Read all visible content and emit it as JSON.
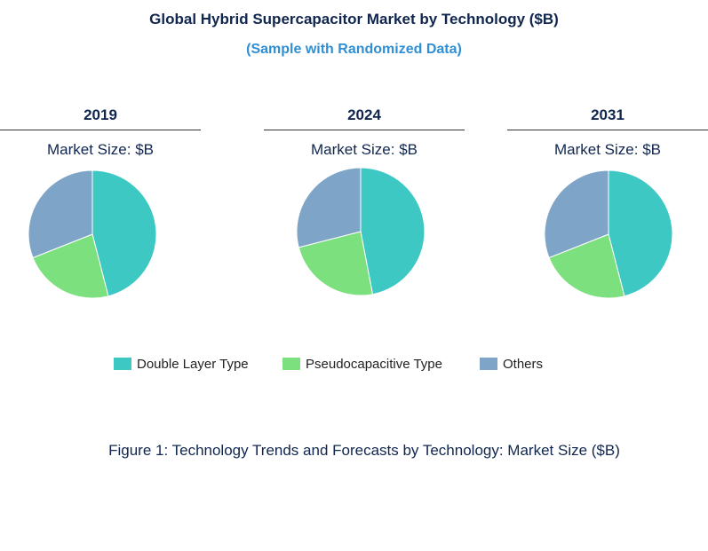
{
  "title": "Global Hybrid Supercapacitor Market by Technology ($B)",
  "subtitle": "(Sample with Randomized Data)",
  "caption": "Figure 1: Technology Trends and Forecasts by Technology: Market Size ($B)",
  "legend": [
    {
      "label": "Double  Layer Type",
      "color": "#3ec8c4"
    },
    {
      "label": "Pseudocapacitive  Type",
      "color": "#7de07e"
    },
    {
      "label": "Others",
      "color": "#7ea4c8"
    }
  ],
  "chart_data": [
    {
      "type": "pie",
      "title": "2019",
      "subtitle": "Market Size: $B",
      "categories": [
        "Double  Layer Type",
        "Pseudocapacitive  Type",
        "Others"
      ],
      "values": [
        46,
        23,
        31
      ],
      "colors": [
        "#3ec8c4",
        "#7de07e",
        "#7ea4c8"
      ]
    },
    {
      "type": "pie",
      "title": "2024",
      "subtitle": "Market Size: $B",
      "categories": [
        "Double  Layer Type",
        "Pseudocapacitive  Type",
        "Others"
      ],
      "values": [
        47,
        24,
        29
      ],
      "colors": [
        "#3ec8c4",
        "#7de07e",
        "#7ea4c8"
      ]
    },
    {
      "type": "pie",
      "title": "2031",
      "subtitle": "Market Size: $B",
      "categories": [
        "Double  Layer Type",
        "Pseudocapacitive  Type",
        "Others"
      ],
      "values": [
        46,
        23,
        31
      ],
      "colors": [
        "#3ec8c4",
        "#7de07e",
        "#7ea4c8"
      ]
    }
  ]
}
